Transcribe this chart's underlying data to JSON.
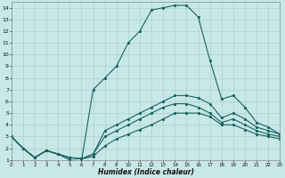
{
  "xlabel": "Humidex (Indice chaleur)",
  "bg_color": "#c8e8e8",
  "grid_color": "#a8d0d0",
  "line_color": "#1a6060",
  "xlim": [
    0,
    23
  ],
  "ylim": [
    1,
    14.5
  ],
  "xticks": [
    0,
    1,
    2,
    3,
    4,
    5,
    6,
    7,
    8,
    9,
    10,
    11,
    12,
    13,
    14,
    15,
    16,
    17,
    18,
    19,
    20,
    21,
    22,
    23
  ],
  "yticks": [
    1,
    2,
    3,
    4,
    5,
    6,
    7,
    8,
    9,
    10,
    11,
    12,
    13,
    14
  ],
  "lines": [
    {
      "x": [
        0,
        1,
        2,
        3,
        4,
        5,
        6,
        7,
        8,
        9,
        10,
        11,
        12,
        13,
        14,
        15,
        16,
        17,
        18,
        19,
        20,
        21,
        22,
        23
      ],
      "y": [
        3,
        2,
        1.2,
        1.8,
        1.5,
        1.0,
        0.9,
        7.0,
        8.0,
        9.0,
        11.0,
        12.0,
        13.8,
        14.0,
        14.2,
        14.2,
        13.2,
        9.5,
        6.2,
        6.5,
        5.5,
        4.2,
        3.8,
        3.2
      ]
    },
    {
      "x": [
        0,
        1,
        2,
        3,
        4,
        5,
        6,
        7,
        8,
        9,
        10,
        11,
        12,
        13,
        14,
        15,
        16,
        17,
        18,
        19,
        20,
        21,
        22,
        23
      ],
      "y": [
        3,
        2,
        1.2,
        1.8,
        1.5,
        1.2,
        1.1,
        1.5,
        3.5,
        4.0,
        4.5,
        5.0,
        5.5,
        6.0,
        6.5,
        6.5,
        6.3,
        5.8,
        4.6,
        5.0,
        4.5,
        3.8,
        3.5,
        3.2
      ]
    },
    {
      "x": [
        0,
        1,
        2,
        3,
        4,
        5,
        6,
        7,
        8,
        9,
        10,
        11,
        12,
        13,
        14,
        15,
        16,
        17,
        18,
        19,
        20,
        21,
        22,
        23
      ],
      "y": [
        3,
        2,
        1.2,
        1.8,
        1.5,
        1.2,
        1.1,
        1.5,
        3.0,
        3.5,
        4.0,
        4.5,
        5.0,
        5.5,
        5.8,
        5.8,
        5.5,
        5.0,
        4.2,
        4.5,
        4.0,
        3.5,
        3.2,
        3.0
      ]
    },
    {
      "x": [
        0,
        1,
        2,
        3,
        4,
        5,
        6,
        7,
        8,
        9,
        10,
        11,
        12,
        13,
        14,
        15,
        16,
        17,
        18,
        19,
        20,
        21,
        22,
        23
      ],
      "y": [
        3,
        2,
        1.2,
        1.8,
        1.5,
        1.2,
        1.1,
        1.3,
        2.2,
        2.8,
        3.2,
        3.6,
        4.0,
        4.5,
        5.0,
        5.0,
        5.0,
        4.7,
        4.0,
        4.0,
        3.6,
        3.2,
        3.0,
        2.8
      ]
    }
  ]
}
